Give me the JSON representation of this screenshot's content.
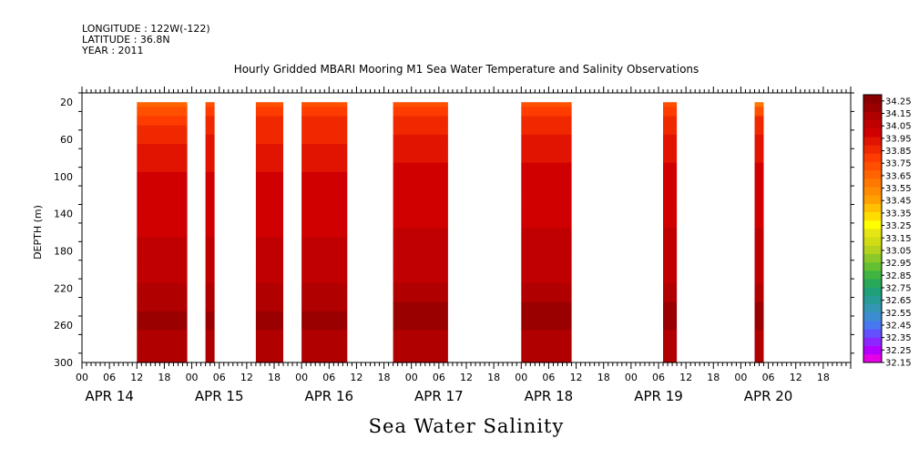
{
  "header": {
    "longitude": "LONGITUDE : 122W(-122)",
    "latitude": "LATITUDE : 36.8N",
    "year": "YEAR : 2011"
  },
  "chart_data": {
    "type": "heatmap",
    "title": "Hourly Gridded MBARI Mooring M1 Sea Water Temperature and Salinity Observations",
    "xlabel": "Sea Water Salinity",
    "ylabel": "DEPTH (m)",
    "x_start": "2011-04-14 00:00",
    "x_end": "2011-04-21 00:00",
    "x_hour_ticks": [
      "00",
      "06",
      "12",
      "18",
      "00",
      "06",
      "12",
      "18",
      "00",
      "06",
      "12",
      "18",
      "00",
      "06",
      "12",
      "18",
      "00",
      "06",
      "12",
      "18",
      "00",
      "06",
      "12",
      "18",
      "00",
      "06",
      "12",
      "18"
    ],
    "x_day_labels": [
      "APR 14",
      "APR 15",
      "APR 16",
      "APR 17",
      "APR 18",
      "APR 19",
      "APR 20"
    ],
    "ylim": [
      300,
      10
    ],
    "y_ticks": [
      20,
      60,
      100,
      140,
      180,
      220,
      260,
      300
    ],
    "colorbar": {
      "range": [
        32.15,
        34.3
      ],
      "labels": [
        "34.25",
        "34.15",
        "34.05",
        "33.95",
        "33.85",
        "33.75",
        "33.65",
        "33.55",
        "33.45",
        "33.35",
        "33.25",
        "33.15",
        "33.05",
        "32.95",
        "32.85",
        "32.75",
        "32.65",
        "32.55",
        "32.45",
        "32.35",
        "32.25",
        "32.15"
      ],
      "colors": [
        "#e600e6",
        "#b400ff",
        "#8c28ff",
        "#6450ff",
        "#4878f0",
        "#3c8cd2",
        "#3296b4",
        "#289b96",
        "#20a078",
        "#28a858",
        "#40b440",
        "#64c032",
        "#8cc828",
        "#b4d21e",
        "#d2dc14",
        "#e6e614",
        "#ffff00",
        "#ffdc00",
        "#ffc000",
        "#ffa000",
        "#ff8c00",
        "#ff7800",
        "#ff6400",
        "#ff5000",
        "#ff3c00",
        "#f02800",
        "#e01400",
        "#d00000",
        "#c00000",
        "#b00000",
        "#9a0000",
        "#8a0000"
      ]
    },
    "depth_levels": [
      20,
      30,
      40,
      50,
      60,
      70,
      80,
      90,
      100,
      110,
      120,
      130,
      140,
      150,
      160,
      170,
      180,
      190,
      200,
      210,
      220,
      230,
      240,
      250,
      260,
      270,
      280,
      290,
      300
    ],
    "segments": [
      {
        "start": "2011-04-14 12:00",
        "end": "2011-04-14 23:00",
        "profile": [
          33.65,
          33.72,
          33.79,
          33.84,
          33.88,
          33.92,
          33.94,
          33.96,
          33.97,
          33.98,
          33.99,
          34.0,
          34.01,
          34.02,
          34.03,
          34.04,
          34.05,
          34.06,
          34.07,
          34.08,
          34.1,
          34.13,
          34.15,
          34.2,
          34.17,
          34.15,
          34.14,
          34.14,
          34.13
        ]
      },
      {
        "start": "2011-04-15 03:00",
        "end": "2011-04-15 05:00",
        "profile": [
          33.75,
          33.8,
          33.84,
          33.87,
          33.9,
          33.92,
          33.94,
          33.96,
          33.97,
          33.98,
          33.99,
          34.0,
          34.01,
          34.02,
          34.03,
          34.04,
          34.05,
          34.06,
          34.07,
          34.08,
          34.1,
          34.13,
          34.16,
          34.2,
          34.17,
          34.15,
          34.14,
          34.14,
          34.13
        ]
      },
      {
        "start": "2011-04-15 14:00",
        "end": "2011-04-15 20:00",
        "profile": [
          33.72,
          33.78,
          33.83,
          33.86,
          33.89,
          33.92,
          33.94,
          33.96,
          33.97,
          33.98,
          33.99,
          34.0,
          34.01,
          34.02,
          34.03,
          34.04,
          34.05,
          34.06,
          34.07,
          34.08,
          34.1,
          34.13,
          34.15,
          34.2,
          34.17,
          34.15,
          34.14,
          34.14,
          34.13
        ]
      },
      {
        "start": "2011-04-16 00:00",
        "end": "2011-04-16 10:00",
        "profile": [
          33.7,
          33.77,
          33.83,
          33.86,
          33.89,
          33.92,
          33.94,
          33.96,
          33.97,
          33.98,
          33.99,
          34.0,
          34.01,
          34.02,
          34.03,
          34.04,
          34.05,
          34.06,
          34.07,
          34.08,
          34.1,
          34.13,
          34.16,
          34.2,
          34.17,
          34.15,
          34.14,
          34.14,
          34.13
        ]
      },
      {
        "start": "2011-04-16 20:00",
        "end": "2011-04-17 08:00",
        "profile": [
          33.73,
          33.8,
          33.86,
          33.89,
          33.92,
          33.94,
          33.96,
          33.97,
          33.98,
          33.99,
          34.0,
          34.01,
          34.02,
          34.03,
          34.04,
          34.05,
          34.06,
          34.07,
          34.08,
          34.09,
          34.11,
          34.14,
          34.17,
          34.21,
          34.18,
          34.16,
          34.15,
          34.14,
          34.13
        ]
      },
      {
        "start": "2011-04-18 00:00",
        "end": "2011-04-18 11:00",
        "profile": [
          33.72,
          33.8,
          33.86,
          33.89,
          33.92,
          33.94,
          33.96,
          33.97,
          33.98,
          33.99,
          34.0,
          34.01,
          34.02,
          34.03,
          34.04,
          34.05,
          34.06,
          34.07,
          34.08,
          34.09,
          34.11,
          34.14,
          34.17,
          34.21,
          34.18,
          34.16,
          34.15,
          34.14,
          34.13
        ]
      },
      {
        "start": "2011-04-19 07:00",
        "end": "2011-04-19 10:00",
        "profile": [
          33.7,
          33.78,
          33.84,
          33.88,
          33.91,
          33.93,
          33.95,
          33.97,
          33.98,
          33.99,
          34.0,
          34.01,
          34.02,
          34.03,
          34.04,
          34.05,
          34.06,
          34.07,
          34.08,
          34.09,
          34.11,
          34.14,
          34.17,
          34.21,
          34.18,
          34.16,
          34.15,
          34.14,
          34.13
        ]
      },
      {
        "start": "2011-04-20 03:00",
        "end": "2011-04-20 05:00",
        "profile": [
          33.6,
          33.75,
          33.84,
          33.88,
          33.91,
          33.93,
          33.95,
          33.97,
          33.98,
          33.99,
          34.0,
          34.01,
          34.02,
          34.03,
          34.04,
          34.05,
          34.06,
          34.07,
          34.08,
          34.09,
          34.11,
          34.14,
          34.17,
          34.21,
          34.18,
          34.16,
          34.15,
          34.14,
          34.13
        ]
      }
    ]
  }
}
